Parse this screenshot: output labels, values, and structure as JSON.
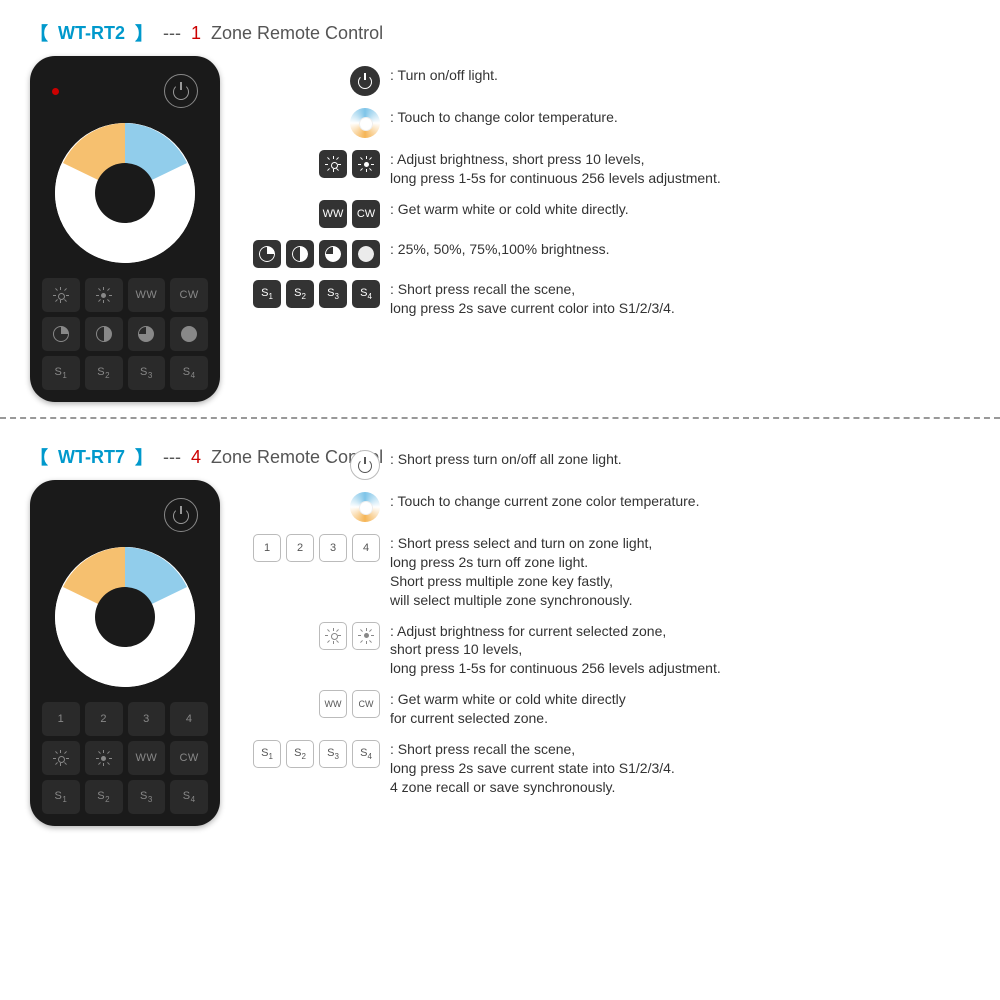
{
  "product1": {
    "model": "WT-RT2",
    "zone_count": "1",
    "zone_label": "Zone Remote Control",
    "remote": {
      "row1": {
        "ww": "WW",
        "cw": "CW"
      },
      "row3": {
        "s1": "S",
        "s2": "S",
        "s3": "S",
        "s4": "S",
        "sub1": "1",
        "sub2": "2",
        "sub3": "3",
        "sub4": "4"
      }
    },
    "legend": {
      "power": "Turn on/off light.",
      "wheel": "Touch to change color temperature.",
      "brightness": "Adjust brightness, short press 10 levels,\n long press 1-5s for continuous 256 levels adjustment.",
      "wwcw_ww": "WW",
      "wwcw_cw": "CW",
      "wwcw": "Get warm white or cold white directly.",
      "pie": "25%, 50%, 75%,100% brightness.",
      "scene_s1": "S",
      "scene_s2": "S",
      "scene_s3": "S",
      "scene_s4": "S",
      "scene_sub1": "1",
      "scene_sub2": "2",
      "scene_sub3": "3",
      "scene_sub4": "4",
      "scene": "Short press recall the scene,\n long press 2s save current color into S1/2/3/4."
    }
  },
  "product2": {
    "model": "WT-RT7",
    "zone_count": "4",
    "zone_label": "Zone Remote Control",
    "remote": {
      "row1": {
        "z1": "1",
        "z2": "2",
        "z3": "3",
        "z4": "4"
      },
      "row2": {
        "ww": "WW",
        "cw": "CW"
      },
      "row3": {
        "s1": "S",
        "s2": "S",
        "s3": "S",
        "s4": "S",
        "sub1": "1",
        "sub2": "2",
        "sub3": "3",
        "sub4": "4"
      }
    },
    "legend": {
      "power": "Short press turn on/off all zone light.",
      "wheel": "Touch to change current zone color temperature.",
      "zones_1": "1",
      "zones_2": "2",
      "zones_3": "3",
      "zones_4": "4",
      "zones": "Short press select and turn on zone light,\n long press 2s turn off zone light.\n Short press multiple zone key fastly,\n will select multiple zone synchronously.",
      "brightness": "Adjust brightness for current selected zone,\n short press 10 levels,\n long press 1-5s for continuous 256 levels adjustment.",
      "wwcw_ww": "WW",
      "wwcw_cw": "CW",
      "wwcw": "Get warm white or cold white directly\n for current selected zone.",
      "scene_s1": "S",
      "scene_s2": "S",
      "scene_s3": "S",
      "scene_s4": "S",
      "scene_sub1": "1",
      "scene_sub2": "2",
      "scene_sub3": "3",
      "scene_sub4": "4",
      "scene": "Short press recall the scene,\n long press 2s save current state into S1/2/3/4.\n 4 zone recall or save synchronously."
    }
  },
  "colors": {
    "brand": "#0099cc",
    "accent": "#cc0000",
    "dark": "#333333",
    "warm": "#f5b556",
    "cold": "#7ec4e8"
  }
}
